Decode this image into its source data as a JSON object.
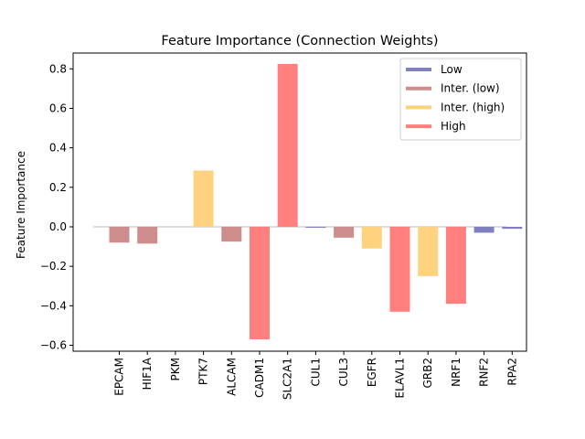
{
  "chart_data": {
    "type": "bar",
    "title": "Feature Importance (Connection Weights)",
    "xlabel": "",
    "ylabel": "Feature Importance",
    "ylim": [
      -0.63,
      0.88
    ],
    "yticks": [
      -0.6,
      -0.4,
      -0.2,
      0.0,
      0.2,
      0.4,
      0.6,
      0.8
    ],
    "ytick_labels": [
      "−0.6",
      "−0.4",
      "−0.2",
      "0.0",
      "0.2",
      "0.4",
      "0.6",
      "0.8"
    ],
    "categories": [
      "EPCAM",
      "HIF1A",
      "PKM",
      "PTK7",
      "ALCAM",
      "CADM1",
      "SLC2A1",
      "CUL1",
      "CUL3",
      "EGFR",
      "ELAVL1",
      "GRB2",
      "NRF1",
      "RNF2",
      "RPA2"
    ],
    "values": [
      -0.08,
      -0.085,
      0.0,
      0.285,
      -0.075,
      -0.57,
      0.825,
      -0.005,
      -0.055,
      -0.11,
      -0.43,
      -0.25,
      -0.39,
      -0.03,
      -0.01
    ],
    "groups": [
      "Inter. (low)",
      "Inter. (low)",
      "Inter. (low)",
      "Inter. (high)",
      "Inter. (low)",
      "High",
      "High",
      "Low",
      "Inter. (low)",
      "Inter. (high)",
      "High",
      "Inter. (high)",
      "High",
      "Low",
      "Low"
    ],
    "legend": {
      "placement": "upper-right",
      "entries": [
        {
          "name": "Low",
          "color": "#8080c0"
        },
        {
          "name": "Inter. (low)",
          "color": "#cd8d8d"
        },
        {
          "name": "Inter. (high)",
          "color": "#ffd27f"
        },
        {
          "name": "High",
          "color": "#ff7f7f"
        }
      ]
    },
    "zero_line_color": "#d3d3d3",
    "grid": false
  }
}
